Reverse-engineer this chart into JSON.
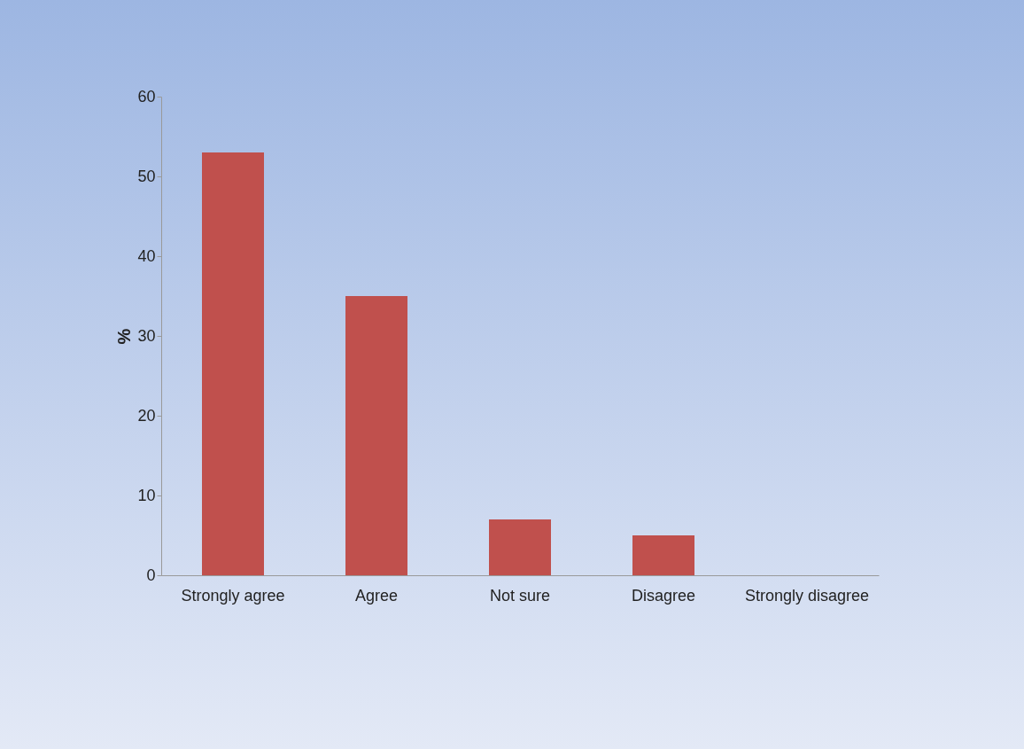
{
  "chart_data": {
    "type": "bar",
    "ylabel": "%",
    "categories": [
      "Strongly agree",
      "Agree",
      "Not sure",
      "Disagree",
      "Strongly disagree"
    ],
    "values": [
      53,
      35,
      7,
      5,
      0
    ],
    "color": "#c0504d",
    "ylim": [
      0,
      60
    ],
    "yticks": [
      0,
      10,
      20,
      30,
      40,
      50,
      60
    ],
    "grid": false
  }
}
